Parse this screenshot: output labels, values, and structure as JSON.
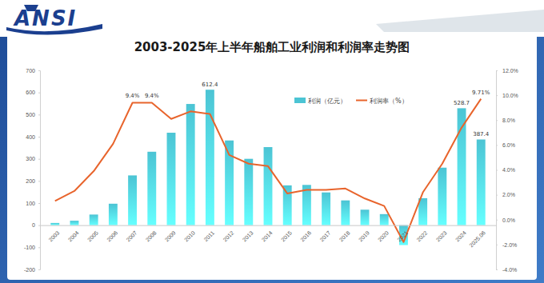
{
  "header": {
    "logo": "ANSI"
  },
  "chart_data": {
    "type": "bar",
    "title": "2003-2025年上半年船舶工业利润和利润率走势图",
    "categories": [
      "2003",
      "2004",
      "2005",
      "2006",
      "2007",
      "2008",
      "2009",
      "2010",
      "2011",
      "2012",
      "2013",
      "2014",
      "2015",
      "2016",
      "2017",
      "2018",
      "2019",
      "2020",
      "2021",
      "2022",
      "2023",
      "2024",
      "2025.06"
    ],
    "series": [
      {
        "name": "利润（亿元）",
        "type": "bar",
        "color": "#4cc4d4",
        "values": [
          10,
          20,
          48,
          97,
          225,
          332,
          418,
          548,
          612.4,
          383,
          300,
          353,
          180,
          182,
          148,
          112,
          70,
          50,
          -90,
          122,
          260,
          528.7,
          387.4
        ],
        "value_labels": [
          null,
          null,
          null,
          null,
          null,
          null,
          null,
          null,
          "612.4",
          null,
          null,
          null,
          null,
          null,
          null,
          null,
          null,
          null,
          null,
          null,
          null,
          "528.7",
          "387.4"
        ]
      },
      {
        "name": "利润率（%）",
        "type": "line",
        "axis": "y2",
        "color": "#e8642c",
        "marker": "none",
        "values": [
          1.5,
          2.3,
          3.9,
          6.1,
          9.4,
          9.4,
          8.1,
          8.7,
          8.5,
          5.2,
          4.5,
          4.3,
          2.1,
          2.4,
          2.4,
          2.5,
          1.7,
          1.1,
          -1.8,
          2.2,
          4.5,
          7.4,
          9.71
        ],
        "value_labels": [
          null,
          null,
          null,
          null,
          "9.4%",
          "9.4%",
          null,
          null,
          null,
          null,
          null,
          null,
          null,
          null,
          null,
          null,
          null,
          null,
          null,
          null,
          null,
          null,
          "9.71%"
        ]
      }
    ],
    "ylim": [
      -200,
      700
    ],
    "yticks": [
      -200,
      -100,
      0,
      100,
      200,
      300,
      400,
      500,
      600,
      700
    ],
    "y2lim": [
      -4,
      12
    ],
    "y2ticks": [
      {
        "value": -4,
        "label": "-4.0%"
      },
      {
        "value": -2,
        "label": "-2.0%"
      },
      {
        "value": 0,
        "label": "0.0%"
      },
      {
        "value": 2,
        "label": "2.0%"
      },
      {
        "value": 4,
        "label": "4.0%"
      },
      {
        "value": 6,
        "label": "6.0%"
      },
      {
        "value": 8,
        "label": "8.0%"
      },
      {
        "value": 10,
        "label": "10.0%"
      },
      {
        "value": 12,
        "label": "12.0%"
      }
    ],
    "grid": false,
    "legend": "top",
    "data_labels": true
  }
}
